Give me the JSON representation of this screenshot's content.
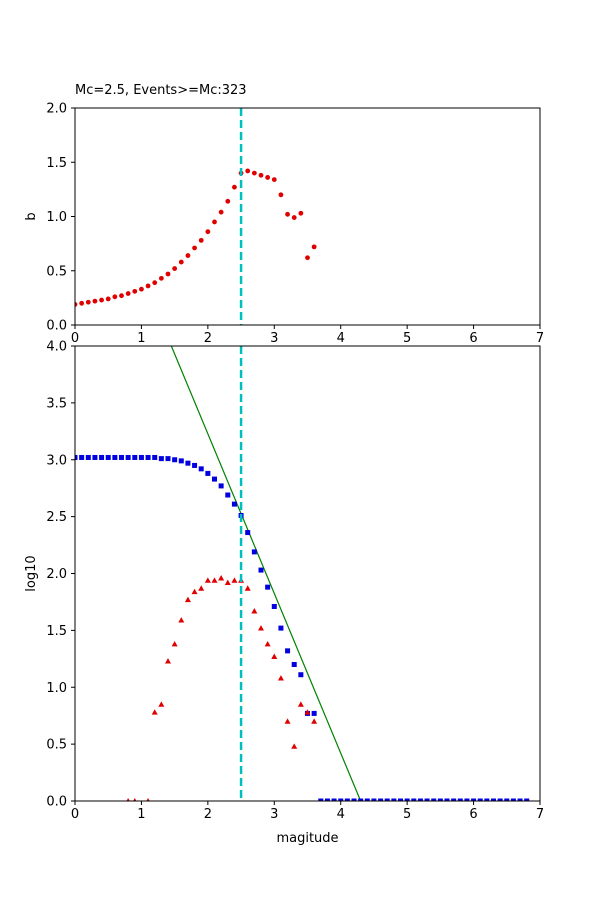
{
  "chart_data": [
    {
      "type": "scatter",
      "title": "Mc=2.5, Events>=Mc:323",
      "xlabel": "",
      "ylabel": "b",
      "xlim": [
        0,
        7
      ],
      "ylim": [
        0,
        2
      ],
      "xticks": [
        "0",
        "1",
        "2",
        "3",
        "4",
        "5",
        "6",
        "7"
      ],
      "yticks": [
        "0.0",
        "0.5",
        "1.0",
        "1.5",
        "2.0"
      ],
      "grid": false,
      "vline": {
        "x": 2.5,
        "color": "#00bfbf",
        "style": "dashed"
      },
      "series": [
        {
          "marker": "circle",
          "color": "#e00000",
          "x": [
            0.0,
            0.1,
            0.2,
            0.3,
            0.4,
            0.5,
            0.6,
            0.7,
            0.8,
            0.9,
            1.0,
            1.1,
            1.2,
            1.3,
            1.4,
            1.5,
            1.6,
            1.7,
            1.8,
            1.9,
            2.0,
            2.1,
            2.2,
            2.3,
            2.4,
            2.5,
            2.6,
            2.7,
            2.8,
            2.9,
            3.0,
            3.1,
            3.2,
            3.3,
            3.4,
            3.5,
            3.6
          ],
          "y": [
            0.19,
            0.2,
            0.21,
            0.22,
            0.23,
            0.24,
            0.26,
            0.27,
            0.29,
            0.31,
            0.33,
            0.36,
            0.39,
            0.43,
            0.47,
            0.52,
            0.58,
            0.64,
            0.71,
            0.78,
            0.86,
            0.95,
            1.04,
            1.14,
            1.27,
            1.4,
            1.42,
            1.4,
            1.38,
            1.36,
            1.34,
            1.2,
            1.02,
            0.99,
            1.03,
            0.62,
            0.72
          ]
        }
      ]
    },
    {
      "type": "scatter",
      "title": "",
      "xlabel": "magitude",
      "ylabel": "log10",
      "xlim": [
        0,
        7
      ],
      "ylim": [
        0,
        4
      ],
      "xticks": [
        "0",
        "1",
        "2",
        "3",
        "4",
        "5",
        "6",
        "7"
      ],
      "yticks": [
        "0.0",
        "0.5",
        "1.0",
        "1.5",
        "2.0",
        "2.5",
        "3.0",
        "3.5",
        "4.0"
      ],
      "grid": false,
      "vline": {
        "x": 2.5,
        "color": "#00bfbf",
        "style": "dashed"
      },
      "fit_line": {
        "color": "#008000",
        "x": [
          1.45,
          4.3
        ],
        "y": [
          4.0,
          0.0
        ]
      },
      "series": [
        {
          "marker": "square",
          "color": "#0000e0",
          "x": [
            0.0,
            0.1,
            0.2,
            0.3,
            0.4,
            0.5,
            0.6,
            0.7,
            0.8,
            0.9,
            1.0,
            1.1,
            1.2,
            1.3,
            1.4,
            1.5,
            1.6,
            1.7,
            1.8,
            1.9,
            2.0,
            2.1,
            2.2,
            2.3,
            2.4,
            2.5,
            2.6,
            2.7,
            2.8,
            2.9,
            3.0,
            3.1,
            3.2,
            3.3,
            3.4,
            3.5,
            3.6,
            3.7,
            3.8,
            3.9,
            4.0,
            4.1,
            4.2,
            4.3,
            4.4,
            4.5,
            4.6,
            4.7,
            4.8,
            4.9,
            5.0,
            5.1,
            5.2,
            5.3,
            5.4,
            5.5,
            5.6,
            5.7,
            5.8,
            5.9,
            6.0,
            6.1,
            6.2,
            6.3,
            6.4,
            6.5,
            6.6,
            6.7,
            6.8
          ],
          "y": [
            3.02,
            3.02,
            3.02,
            3.02,
            3.02,
            3.02,
            3.02,
            3.02,
            3.02,
            3.02,
            3.02,
            3.02,
            3.02,
            3.01,
            3.01,
            3.0,
            2.99,
            2.97,
            2.95,
            2.92,
            2.88,
            2.83,
            2.77,
            2.69,
            2.61,
            2.51,
            2.36,
            2.19,
            2.03,
            1.88,
            1.71,
            1.52,
            1.32,
            1.2,
            1.11,
            0.77,
            0.77,
            0.0,
            0.0,
            0.0,
            0.0,
            0.0,
            0.0,
            0.0,
            0.0,
            0.0,
            0.0,
            0.0,
            0.0,
            0.0,
            0.0,
            0.0,
            0.0,
            0.0,
            0.0,
            0.0,
            0.0,
            0.0,
            0.0,
            0.0,
            0.0,
            0.0,
            0.0,
            0.0,
            0.0,
            0.0,
            0.0,
            0.0,
            0.0
          ]
        },
        {
          "marker": "triangle",
          "color": "#e00000",
          "x": [
            0.8,
            0.9,
            1.1,
            1.2,
            1.3,
            1.4,
            1.5,
            1.6,
            1.7,
            1.8,
            1.9,
            2.0,
            2.1,
            2.2,
            2.3,
            2.4,
            2.5,
            2.6,
            2.7,
            2.8,
            2.9,
            3.0,
            3.1,
            3.2,
            3.3,
            3.4,
            3.5,
            3.6
          ],
          "y": [
            0.0,
            0.0,
            0.0,
            0.78,
            0.85,
            1.23,
            1.38,
            1.59,
            1.77,
            1.84,
            1.87,
            1.94,
            1.94,
            1.96,
            1.92,
            1.94,
            1.94,
            1.87,
            1.67,
            1.52,
            1.38,
            1.27,
            1.08,
            0.7,
            0.48,
            0.85,
            0.78,
            0.7
          ]
        }
      ]
    }
  ]
}
